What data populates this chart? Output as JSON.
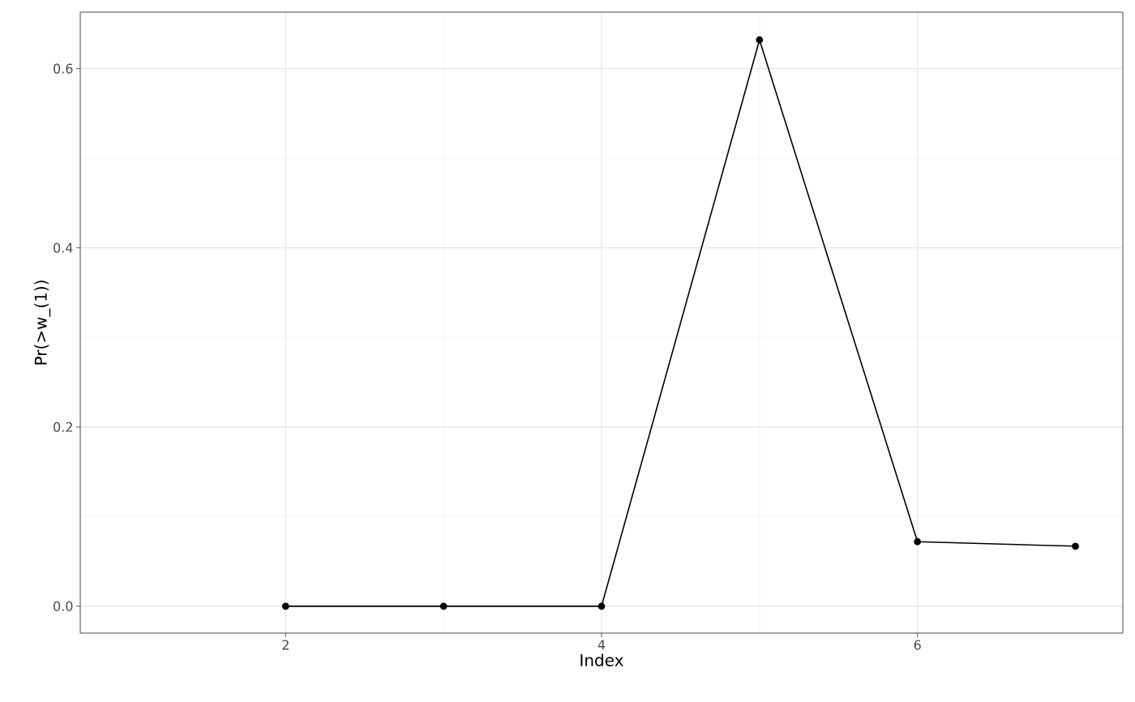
{
  "chart_data": {
    "type": "line",
    "xlabel": "Index",
    "ylabel": "Pr(>w_(1))",
    "x": [
      2,
      3,
      4,
      5,
      6,
      7
    ],
    "series": [
      {
        "color": "#000000",
        "values": [
          0,
          0,
          0,
          0.632,
          0.072,
          0.067
        ]
      }
    ],
    "xlim": [
      0.7,
      7.3
    ],
    "ylim": [
      -0.03,
      0.663
    ],
    "xticks": [
      2,
      4,
      6
    ],
    "yticks": [
      {
        "value": 0,
        "label": "0.0"
      },
      0.2,
      0.4,
      0.6
    ],
    "grid": true,
    "marker": "circle",
    "line_style": "solid"
  }
}
